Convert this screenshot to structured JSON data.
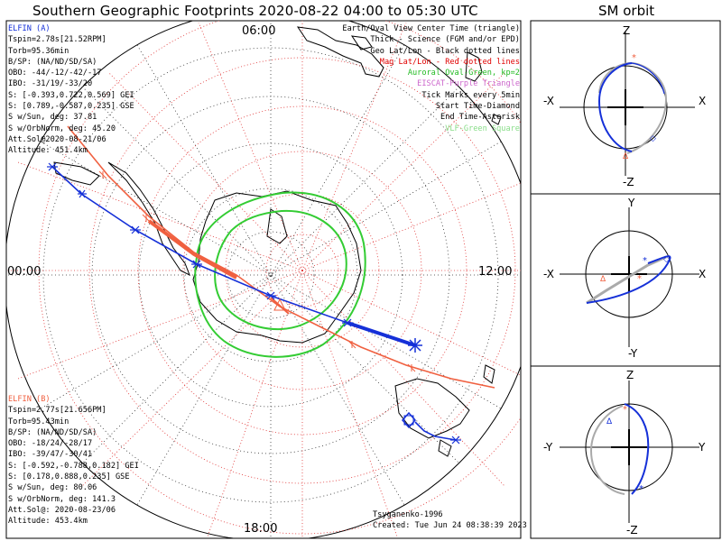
{
  "title": "Southern Geographic Footprints 2020-08-22 04:00 to 05:30 UTC",
  "sm_title": "SM orbit",
  "clock_labels": {
    "top": "06:00",
    "left": "00:00",
    "right": "12:00",
    "bottom": "18:00"
  },
  "elfin_a": {
    "name": "ELFIN (A)",
    "color": "#1530d8",
    "lines": [
      "Tspin=2.78s[21.52RPM]",
      "Torb=95.36min",
      "B/SP: (NA/ND/SD/SA)",
      "OBO: -44/-12/-42/-17",
      "IBO: -31/19/-33/20",
      "S: [-0.393,0.722,0.569] GEI",
      "S: [0.789,-0.587,0.235] GSE",
      "S w/Sun, deg: 37.81",
      "S w/OrbNorm, deg: 45.20",
      "Att.Sol@2020-08-21/06",
      "Altitude: 451.4km"
    ]
  },
  "elfin_b": {
    "name": "ELFIN (B)",
    "color": "#f06040",
    "lines": [
      "Tspin=2.77s[21.656PM]",
      "Torb=95.43min",
      "B/SP: (NA/ND/SD/SA)",
      "OBO: -18/24/-28/17",
      "IBO: -39/47/-30/41",
      "S: [-0.592,-0.788,0.182] GEI",
      "S: [0.178,0.888,0.235] GSE",
      "S w/Sun, deg: 80.06",
      "S w/OrbNorm, deg: 141.3",
      "Att.Sol@: 2020-08-23/06",
      "Altitude: 453.4km"
    ]
  },
  "legend": [
    {
      "text": "Earth/Oval View Center Time (triangle)",
      "color": "#000000"
    },
    {
      "text": "Thick - Science (FGM and/or EPD)",
      "color": "#000000"
    },
    {
      "text": "Geo Lat/Lon - Black dotted lines",
      "color": "#000000"
    },
    {
      "text": "Mag Lat/Lon - Red dotted lines",
      "color": "#e00000"
    },
    {
      "text": "Auroral Oval-Green, kp=2",
      "color": "#22bb22"
    },
    {
      "text": "EISCAT-Purple Triangle",
      "color": "#cc66cc"
    },
    {
      "text": "Tick Marks every 5min",
      "color": "#000000"
    },
    {
      "text": "Start Time-Diamond",
      "color": "#000000"
    },
    {
      "text": "End Time-Asterisk",
      "color": "#000000"
    },
    {
      "text": "VLF-Green Square",
      "color": "#88dd88"
    }
  ],
  "author": "Tsyganenko-1996",
  "created": "Created: Tue Jun 24 08:38:39 2023",
  "panels": [
    {
      "top": "Z",
      "bottom": "-Z",
      "left": "-X",
      "right": "X"
    },
    {
      "top": "Y",
      "bottom": "-Y",
      "left": "-X",
      "right": "X"
    },
    {
      "top": "Z",
      "bottom": "-Z",
      "left": "-Y",
      "right": "Y"
    }
  ],
  "colors": {
    "oval": "#33cc33",
    "mag_grid": "#e03030",
    "orbit_gray": "#aaaaaa"
  }
}
